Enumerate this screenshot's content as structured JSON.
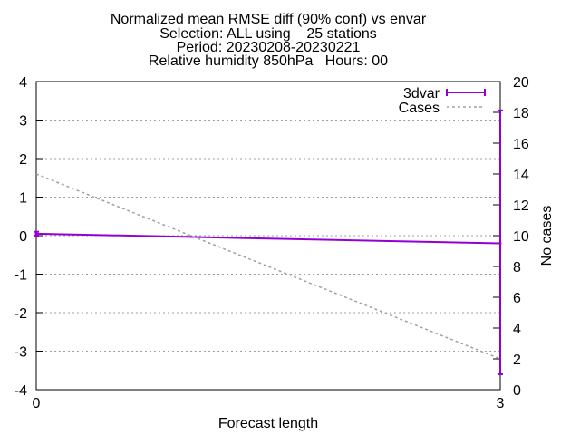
{
  "chart_data": {
    "type": "line",
    "title_lines": [
      "Normalized mean RMSE diff (90% conf) vs envar",
      "Selection: ALL using    25 stations",
      "Period: 20230208-20230221",
      "Relative humidity 850hPa   Hours: 00"
    ],
    "xlabel": "Forecast length",
    "ylabel": "",
    "y2label": "No cases",
    "xlim": [
      0,
      3
    ],
    "ylim": [
      -4,
      4
    ],
    "y2lim": [
      0,
      20
    ],
    "x_ticks": [
      "0",
      "3"
    ],
    "y_ticks": [
      "4",
      "3",
      "2",
      "1",
      "0",
      "-1",
      "-2",
      "-3",
      "-4"
    ],
    "y2_ticks": [
      "20",
      "18",
      "16",
      "14",
      "12",
      "10",
      "8",
      "6",
      "4",
      "2",
      "0"
    ],
    "grid": true,
    "legend_position": "top-right",
    "series": [
      {
        "name": "3dvar",
        "axis": "y",
        "color": "#9400d3",
        "x": [
          0,
          3
        ],
        "y": [
          0.05,
          -0.2
        ],
        "error_low": [
          0.0,
          -3.6
        ],
        "error_high": [
          0.1,
          3.25
        ]
      },
      {
        "name": "Cases",
        "axis": "y2",
        "color": "#a0a0a0",
        "dashed": true,
        "x": [
          0,
          3
        ],
        "y": [
          14,
          2
        ]
      }
    ]
  }
}
